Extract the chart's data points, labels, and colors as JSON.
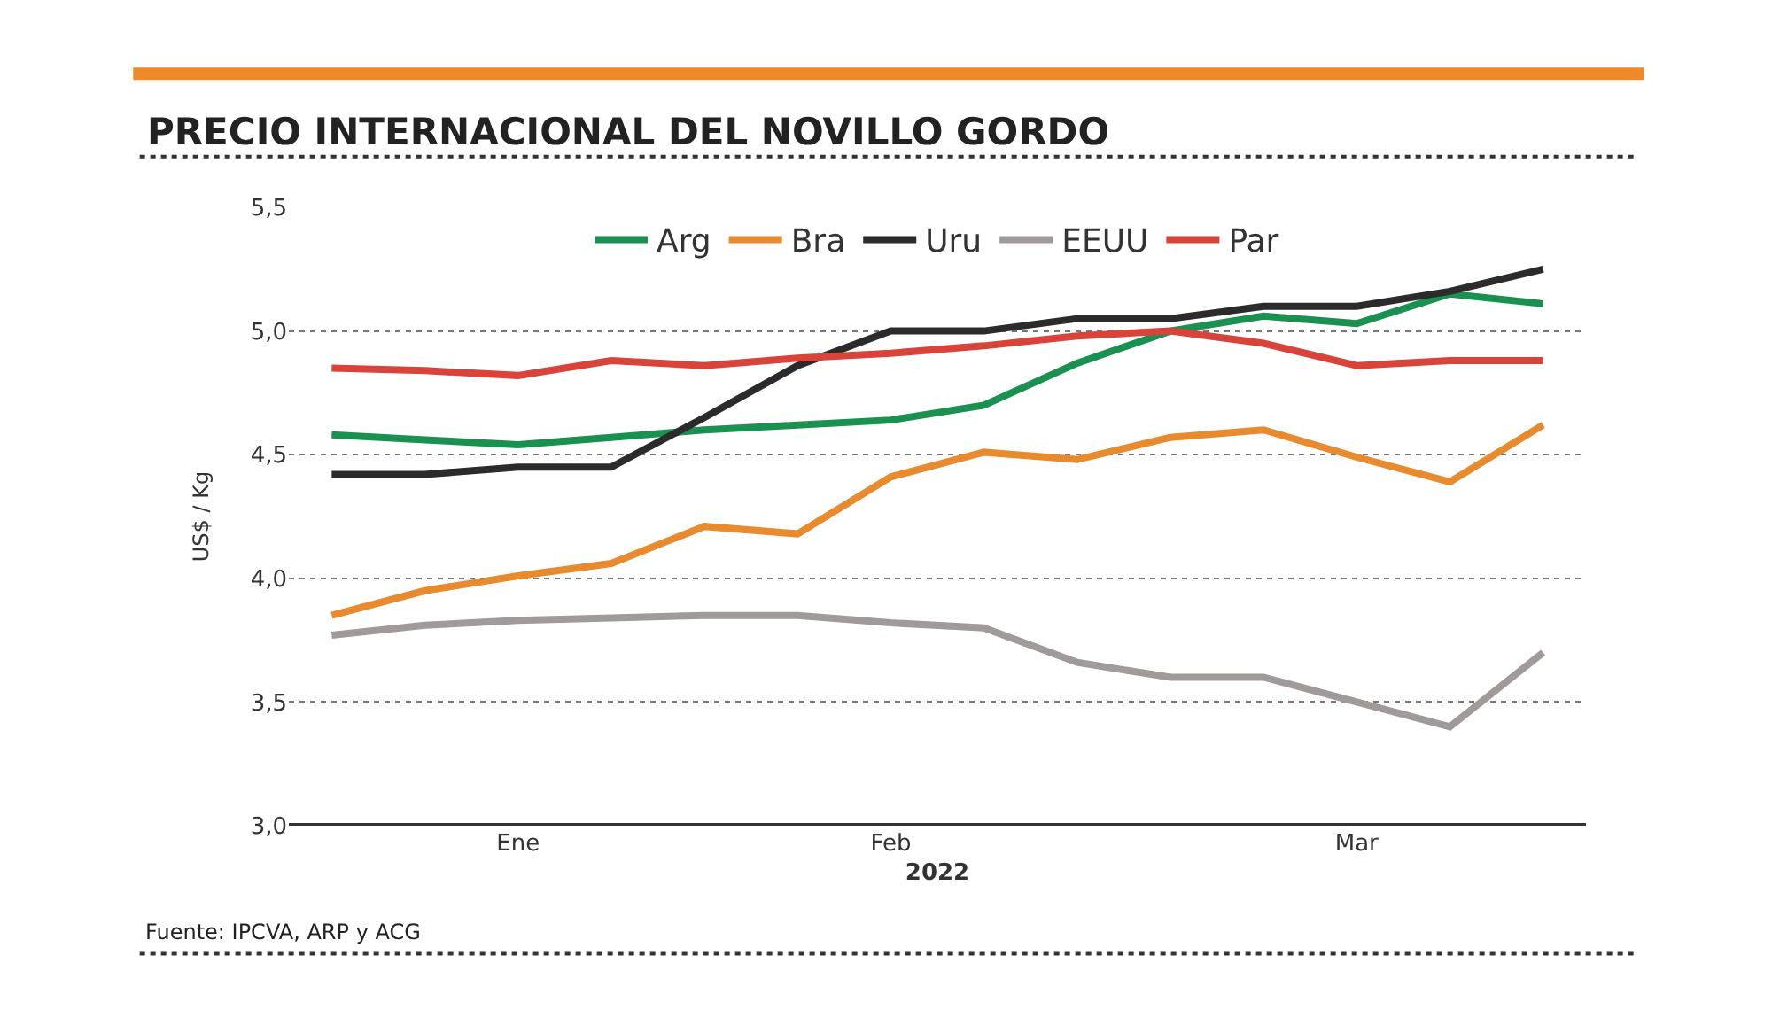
{
  "chart_data": {
    "type": "line",
    "title": "PRECIO INTERNACIONAL DEL NOVILLO GORDO",
    "ylabel": "US$ / Kg",
    "xlabel": "2022",
    "categories": [
      null,
      null,
      "Ene",
      null,
      null,
      null,
      "Feb",
      null,
      null,
      null,
      null,
      "Mar",
      null,
      null
    ],
    "ylim": [
      3.0,
      5.5
    ],
    "yticks": [
      {
        "value": 3.0,
        "label": "3,0"
      },
      {
        "value": 3.5,
        "label": "3,5"
      },
      {
        "value": 4.0,
        "label": "4,0"
      },
      {
        "value": 4.5,
        "label": "4,5"
      },
      {
        "value": 5.0,
        "label": "5,0"
      },
      {
        "value": 5.5,
        "label": "5,5"
      }
    ],
    "series": [
      {
        "name": "Arg",
        "color": "#1a9150",
        "values": [
          4.58,
          4.56,
          4.54,
          4.57,
          4.6,
          4.62,
          4.64,
          4.7,
          4.87,
          5.0,
          5.06,
          5.03,
          5.15,
          5.11
        ]
      },
      {
        "name": "Bra",
        "color": "#e88a2e",
        "values": [
          3.85,
          3.95,
          4.01,
          4.06,
          4.21,
          4.18,
          4.41,
          4.51,
          4.48,
          4.57,
          4.6,
          4.49,
          4.39,
          4.62
        ]
      },
      {
        "name": "Uru",
        "color": "#2b2b2b",
        "values": [
          4.42,
          4.42,
          4.45,
          4.45,
          4.65,
          4.86,
          5.0,
          5.0,
          5.05,
          5.05,
          5.1,
          5.1,
          5.16,
          5.25
        ]
      },
      {
        "name": "EEUU",
        "color": "#a09a9a",
        "values": [
          3.77,
          3.81,
          3.83,
          3.84,
          3.85,
          3.85,
          3.82,
          3.8,
          3.66,
          3.6,
          3.6,
          3.5,
          3.4,
          3.7
        ]
      },
      {
        "name": "Par",
        "color": "#d9443a",
        "values": [
          4.85,
          4.84,
          4.82,
          4.88,
          4.86,
          4.89,
          4.91,
          4.94,
          4.98,
          5.0,
          4.95,
          4.86,
          4.88,
          4.88
        ]
      }
    ],
    "grid": "y",
    "legend": "top",
    "marker": "none",
    "line_style": "solid",
    "annotations": [
      "Fuente: IPCVA, ARP y ACG"
    ]
  }
}
